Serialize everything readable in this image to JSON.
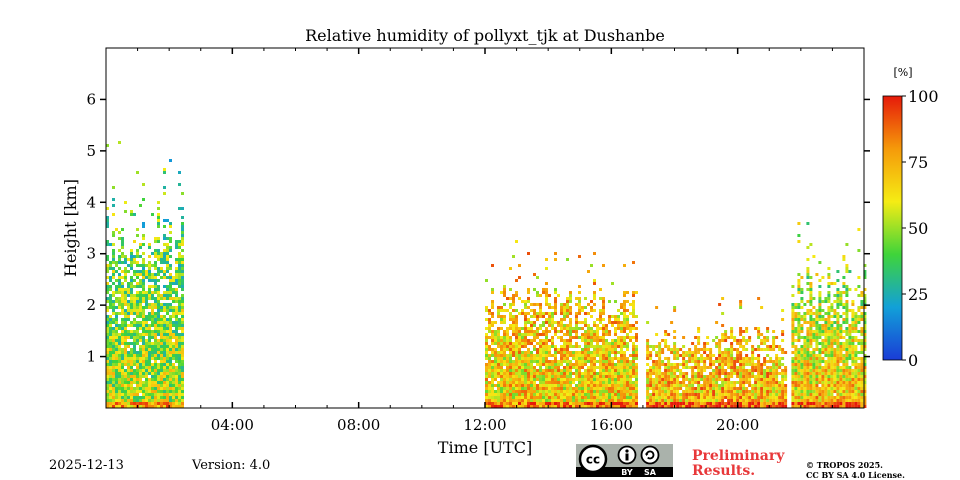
{
  "chart_data": {
    "type": "heatmap",
    "title": "Relative humidity of pollyxt_tjk at Dushanbe",
    "xlabel": "Time [UTC]",
    "ylabel": "Height [km]",
    "xlim": [
      0,
      24
    ],
    "ylim": [
      0,
      7
    ],
    "x_ticks": [
      {
        "value": 4,
        "label": "04:00"
      },
      {
        "value": 8,
        "label": "08:00"
      },
      {
        "value": 12,
        "label": "12:00"
      },
      {
        "value": 16,
        "label": "16:00"
      },
      {
        "value": 20,
        "label": "20:00"
      }
    ],
    "y_ticks": [
      {
        "value": 1,
        "label": "1"
      },
      {
        "value": 2,
        "label": "2"
      },
      {
        "value": 3,
        "label": "3"
      },
      {
        "value": 4,
        "label": "4"
      },
      {
        "value": 5,
        "label": "5"
      },
      {
        "value": 6,
        "label": "6"
      }
    ],
    "colorbar": {
      "unit": "[%]",
      "min": 0,
      "max": 100,
      "ticks": [
        {
          "value": 0,
          "label": "0"
        },
        {
          "value": 25,
          "label": "25"
        },
        {
          "value": 50,
          "label": "50"
        },
        {
          "value": 75,
          "label": "75"
        },
        {
          "value": 100,
          "label": "100"
        }
      ],
      "colors": [
        "#1a3cd6",
        "#12a0d8",
        "#3fd43a",
        "#f5ec14",
        "#f59a0a",
        "#e61a0a"
      ]
    },
    "segments": [
      {
        "start": 0.0,
        "end": 2.45,
        "top_km": 3.7,
        "near_surface_rh": 55,
        "upper_rh": 40
      },
      {
        "start": 12.0,
        "end": 16.8,
        "top_km": 2.3,
        "near_surface_rh": 65,
        "upper_rh": 70
      },
      {
        "start": 17.1,
        "end": 21.5,
        "top_km": 1.5,
        "near_surface_rh": 72,
        "upper_rh": 70
      },
      {
        "start": 21.7,
        "end": 24.0,
        "top_km": 2.6,
        "near_surface_rh": 70,
        "upper_rh": 50
      }
    ]
  },
  "footer": {
    "date": "2025-12-13",
    "version": "Version: 4.0",
    "preliminary_line1": "Preliminary",
    "preliminary_line2": "Results.",
    "license_line1": "© TROPOS 2025.",
    "license_line2": "CC BY SA 4.0 License.",
    "cc_badge": {
      "cc": "cc",
      "by": "BY",
      "sa": "SA"
    }
  }
}
